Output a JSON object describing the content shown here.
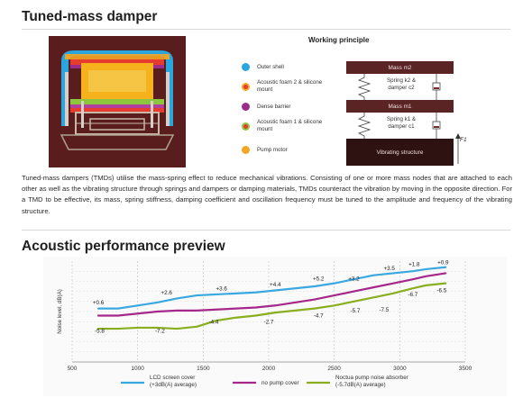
{
  "section1": {
    "title": "Tuned-mass damper"
  },
  "working_principle": {
    "title": "Working principle",
    "legend": [
      {
        "label": "Outer shell",
        "color": "#2aa6de",
        "icon": "blue-dot-icon"
      },
      {
        "label": "Acoustic foam 2 & silicone mount",
        "color": "#e63c2f",
        "ring": "#f5a623",
        "icon": "red-orange-dot-icon"
      },
      {
        "label": "Dense barrier",
        "color": "#9b2c8a",
        "icon": "purple-dot-icon"
      },
      {
        "label": "Acoustic foam 1 & silicone mount",
        "color": "#e63c2f",
        "ring": "#8cc63f",
        "icon": "red-green-dot-icon"
      },
      {
        "label": "Pump motor",
        "color": "#f5a623",
        "icon": "orange-dot-icon"
      }
    ],
    "mass2": "Mass m2",
    "spring2": "Spring k2 & damper c2",
    "mass1": "Mass m1",
    "spring1": "Spring k1 & damper c1",
    "vibrating": "Vibrating structure",
    "force": "F1"
  },
  "description": "Tuned-mass dampers (TMDs) utilise the mass-spring effect to reduce mechanical vibrations. Consisting of one or more mass nodes that are attached to each other as well as the vibrating structure through springs and dampers or damping materials, TMDs counteract the vibration by moving in the opposite direction. For a TMD to be effective, its mass, spring stiffness, damping coefficient and oscillation frequency must be tuned to the amplitude and frequency of the vibrating structure.",
  "section2": {
    "title": "Acoustic performance preview"
  },
  "chart_data": {
    "type": "line",
    "title": "",
    "xlabel": "",
    "ylabel": "Noise level, dB(A)",
    "xlim": [
      500,
      3500
    ],
    "xticks": [
      500,
      1000,
      1500,
      2000,
      2500,
      3000,
      3500
    ],
    "ylim": [
      0,
      10
    ],
    "grid": true,
    "series": [
      {
        "name": "LCD screen cover (+3dB(A) average)",
        "color": "#3aa8e0",
        "x": [
          700,
          850,
          1000,
          1150,
          1300,
          1450,
          1600,
          1750,
          1900,
          2050,
          2200,
          2350,
          2500,
          2650,
          2800,
          2950,
          3100,
          3200,
          3350
        ],
        "y": [
          5.3,
          5.3,
          5.6,
          5.9,
          6.3,
          6.6,
          6.7,
          6.8,
          6.9,
          7.1,
          7.3,
          7.5,
          7.8,
          8.2,
          8.6,
          8.8,
          9.0,
          9.2,
          9.4
        ]
      },
      {
        "name": "no pump cover",
        "color": "#a6278a",
        "x": [
          700,
          850,
          1000,
          1150,
          1300,
          1450,
          1600,
          1750,
          1900,
          2050,
          2200,
          2350,
          2500,
          2650,
          2800,
          2950,
          3100,
          3200,
          3350
        ],
        "y": [
          4.6,
          4.6,
          4.8,
          5.0,
          5.1,
          5.1,
          5.2,
          5.3,
          5.4,
          5.6,
          5.9,
          6.2,
          6.6,
          7.0,
          7.4,
          7.8,
          8.2,
          8.5,
          8.8
        ]
      },
      {
        "name": "Noctua pump noise absorber (-5.7dB(A) average)",
        "color": "#8aae1e",
        "x": [
          700,
          850,
          1000,
          1150,
          1300,
          1450,
          1600,
          1750,
          1900,
          2050,
          2200,
          2350,
          2500,
          2650,
          2800,
          2950,
          3100,
          3200,
          3350
        ],
        "y": [
          3.3,
          3.3,
          3.4,
          3.4,
          3.3,
          3.5,
          4.1,
          4.4,
          4.6,
          4.9,
          5.1,
          5.3,
          5.6,
          6.0,
          6.4,
          6.8,
          7.3,
          7.6,
          7.8
        ]
      }
    ],
    "annotations": [
      {
        "text": "+0.6",
        "x": 700,
        "y": 5.7
      },
      {
        "text": "+2.6",
        "x": 1220,
        "y": 6.7
      },
      {
        "text": "+3.6",
        "x": 1640,
        "y": 7.1
      },
      {
        "text": "+4.4",
        "x": 2050,
        "y": 7.5
      },
      {
        "text": "+5.2",
        "x": 2380,
        "y": 8.1
      },
      {
        "text": "+3.2",
        "x": 2650,
        "y": 8.1
      },
      {
        "text": "+3.5",
        "x": 2920,
        "y": 9.1
      },
      {
        "text": "+1.8",
        "x": 3110,
        "y": 9.5
      },
      {
        "text": "+0.9",
        "x": 3330,
        "y": 9.7
      },
      {
        "text": "-5.8",
        "x": 710,
        "y": 2.9
      },
      {
        "text": "-7.2",
        "x": 1170,
        "y": 2.9
      },
      {
        "text": "-4.4",
        "x": 1580,
        "y": 3.8
      },
      {
        "text": "-2.7",
        "x": 2000,
        "y": 3.8
      },
      {
        "text": "-4.7",
        "x": 2380,
        "y": 4.4
      },
      {
        "text": "-5.7",
        "x": 2660,
        "y": 4.9
      },
      {
        "text": "-7.5",
        "x": 2880,
        "y": 5.0
      },
      {
        "text": "-6.7",
        "x": 3100,
        "y": 6.5
      },
      {
        "text": "-6.5",
        "x": 3320,
        "y": 6.9
      }
    ]
  }
}
